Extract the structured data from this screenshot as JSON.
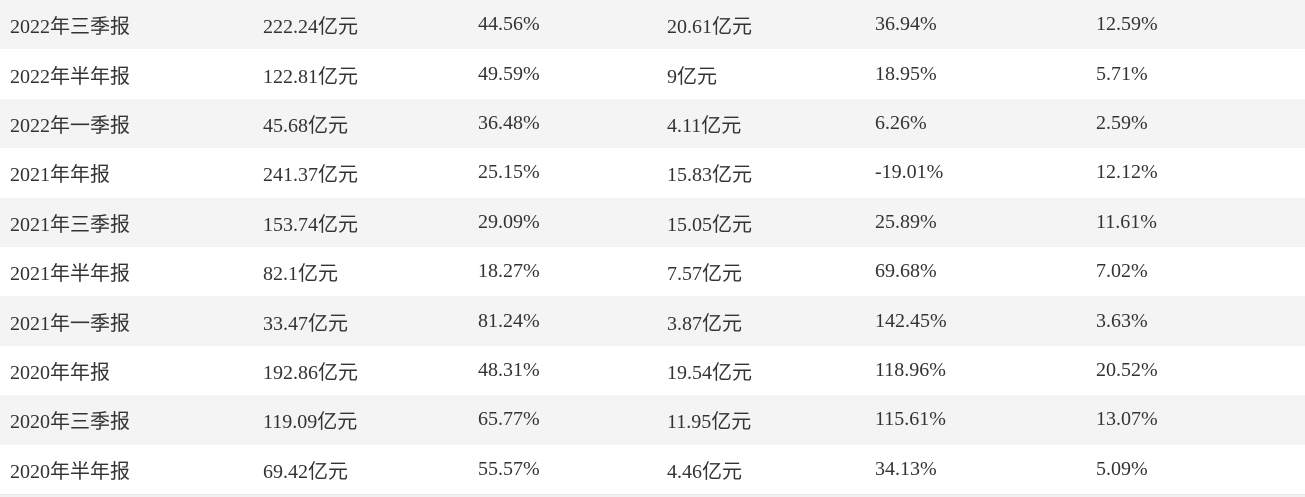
{
  "table": {
    "rows": [
      {
        "cells": [
          "2022年三季报",
          "222.24亿元",
          "44.56%",
          "20.61亿元",
          "36.94%",
          "12.59%"
        ]
      },
      {
        "cells": [
          "2022年半年报",
          "122.81亿元",
          "49.59%",
          "9亿元",
          "18.95%",
          "5.71%"
        ]
      },
      {
        "cells": [
          "2022年一季报",
          "45.68亿元",
          "36.48%",
          "4.11亿元",
          "6.26%",
          "2.59%"
        ]
      },
      {
        "cells": [
          "2021年年报",
          "241.37亿元",
          "25.15%",
          "15.83亿元",
          "-19.01%",
          "12.12%"
        ]
      },
      {
        "cells": [
          "2021年三季报",
          "153.74亿元",
          "29.09%",
          "15.05亿元",
          "25.89%",
          "11.61%"
        ]
      },
      {
        "cells": [
          "2021年半年报",
          "82.1亿元",
          "18.27%",
          "7.57亿元",
          "69.68%",
          "7.02%"
        ]
      },
      {
        "cells": [
          "2021年一季报",
          "33.47亿元",
          "81.24%",
          "3.87亿元",
          "142.45%",
          "3.63%"
        ]
      },
      {
        "cells": [
          "2020年年报",
          "192.86亿元",
          "48.31%",
          "19.54亿元",
          "118.96%",
          "20.52%"
        ]
      },
      {
        "cells": [
          "2020年三季报",
          "119.09亿元",
          "65.77%",
          "11.95亿元",
          "115.61%",
          "13.07%"
        ]
      },
      {
        "cells": [
          "2020年半年报",
          "69.42亿元",
          "55.57%",
          "4.46亿元",
          "34.13%",
          "5.09%"
        ]
      }
    ]
  },
  "colors": {
    "stripe_row": "#f4f4f4",
    "plain_row": "#ffffff",
    "text": "#333333"
  }
}
